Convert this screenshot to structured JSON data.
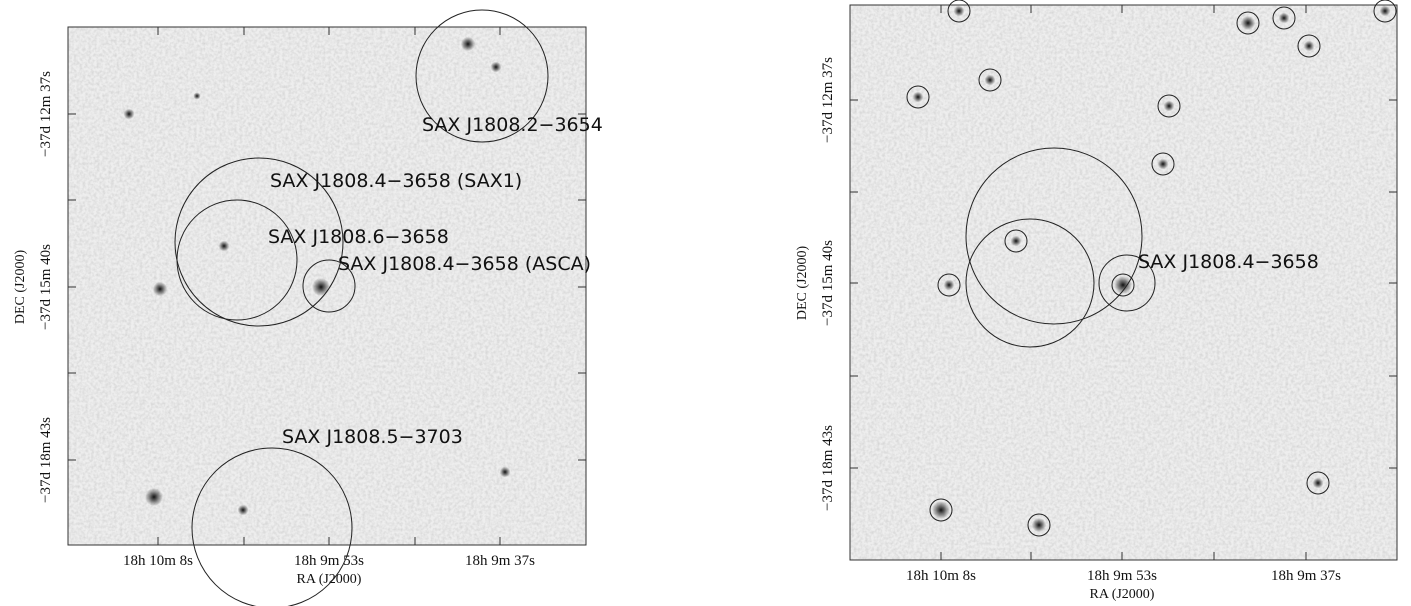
{
  "panels": [
    {
      "x_ticks": [
        "18h 10m 8s",
        "18h 9m 53s",
        "18h 9m 37s"
      ],
      "y_ticks": [
        "−37d 12m 37s",
        "−37d 15m 40s",
        "−37d 18m 43s"
      ],
      "x_label": "RA (J2000)",
      "y_label": "DEC (J2000)",
      "sources": [
        "SAX J1808.2−3654",
        "SAX J1808.4−3658 (SAX1)",
        "SAX J1808.6−3658",
        "SAX J1808.4−3658 (ASCA)",
        "SAX J1808.5−3703"
      ]
    },
    {
      "x_ticks": [
        "18h 10m 8s",
        "18h 9m 53s",
        "18h 9m 37s"
      ],
      "y_ticks": [
        "−37d 12m 37s",
        "−37d 15m 40s",
        "−37d 18m 43s"
      ],
      "x_label": "RA (J2000)",
      "y_label": "DEC (J2000)",
      "sources": [
        "SAX J1808.4−3658"
      ]
    }
  ]
}
